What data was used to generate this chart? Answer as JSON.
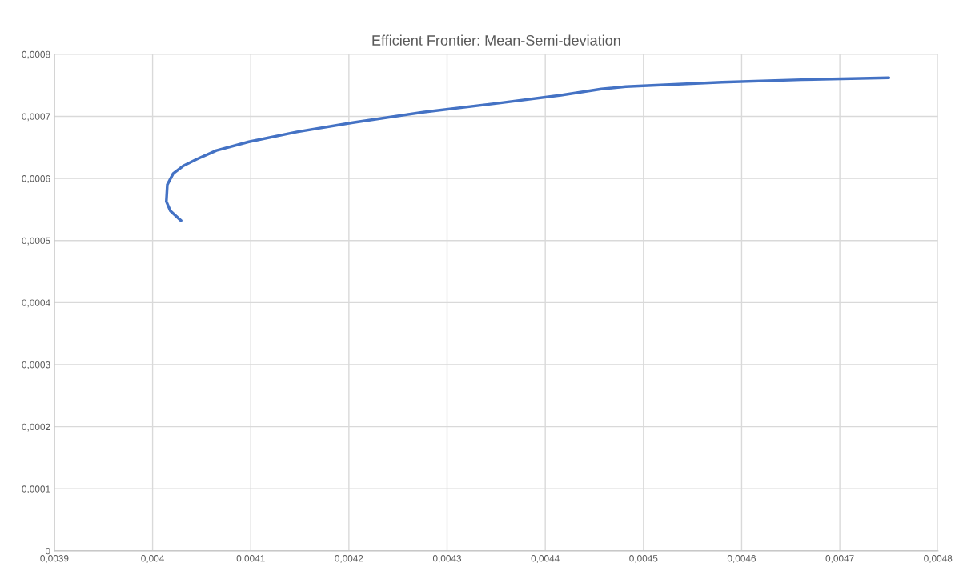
{
  "chart_data": {
    "type": "line",
    "title": "Efficient Frontier: Mean-Semi-deviation",
    "x": [
      0.004029,
      0.004018,
      0.004014,
      0.004015,
      0.004021,
      0.004031,
      0.004045,
      0.004065,
      0.004098,
      0.004147,
      0.004204,
      0.004277,
      0.004351,
      0.004416,
      0.004457,
      0.004482,
      0.00458,
      0.004661,
      0.00475
    ],
    "series": [
      {
        "color": "#4472c4",
        "values": [
          0.000532,
          0.000548,
          0.000563,
          0.00059,
          0.000608,
          0.00062,
          0.000631,
          0.000645,
          0.000659,
          0.000675,
          0.00069,
          0.000707,
          0.000721,
          0.000734,
          0.000744,
          0.000748,
          0.000755,
          0.000759,
          0.000762
        ]
      }
    ],
    "xlim": [
      0.0039,
      0.0048
    ],
    "xticks": [
      {
        "value": 0.0039,
        "label": "0,0039"
      },
      {
        "value": 0.004,
        "label": "0,004"
      },
      {
        "value": 0.0041,
        "label": "0,0041"
      },
      {
        "value": 0.0042,
        "label": "0,0042"
      },
      {
        "value": 0.0043,
        "label": "0,0043"
      },
      {
        "value": 0.0044,
        "label": "0,0044"
      },
      {
        "value": 0.0045,
        "label": "0,0045"
      },
      {
        "value": 0.0046,
        "label": "0,0046"
      },
      {
        "value": 0.0047,
        "label": "0,0047"
      },
      {
        "value": 0.0048,
        "label": "0,0048"
      }
    ],
    "ylim": [
      0,
      0.0008
    ],
    "yticks": [
      0,
      {
        "value": 0.0001,
        "label": "0,0001"
      },
      {
        "value": 0.0002,
        "label": "0,0002"
      },
      {
        "value": 0.0003,
        "label": "0,0003"
      },
      {
        "value": 0.0004,
        "label": "0,0004"
      },
      {
        "value": 0.0005,
        "label": "0,0005"
      },
      {
        "value": 0.0006,
        "label": "0,0006"
      },
      {
        "value": 0.0007,
        "label": "0,0007"
      },
      {
        "value": 0.0008,
        "label": "0,0008"
      }
    ],
    "grid": true,
    "marker": "none",
    "line_style": "solid",
    "legend": false
  }
}
